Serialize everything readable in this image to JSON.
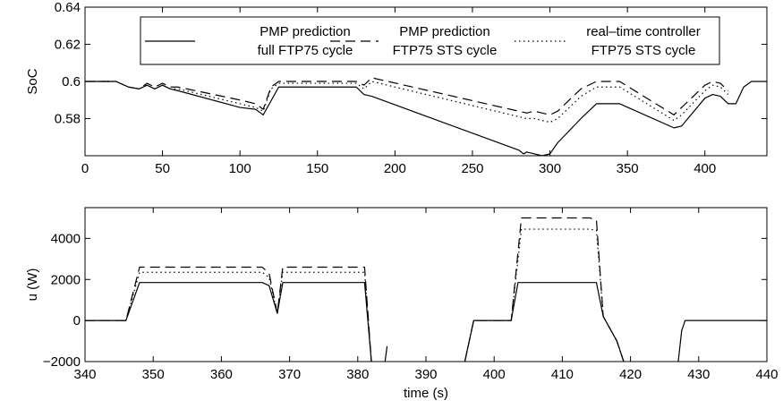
{
  "chart_data": [
    {
      "type": "line",
      "xlim": [
        0,
        440
      ],
      "ylim": [
        0.56,
        0.64
      ],
      "xticks": [
        "0",
        "50",
        "100",
        "150",
        "200",
        "250",
        "300",
        "350",
        "400"
      ],
      "yticks": [
        "0.58",
        "0.6",
        "0.62",
        "0.64"
      ],
      "ylabel": "SoC",
      "xlabel": "",
      "legend": "top",
      "series": [
        {
          "line1": "PMP prediction",
          "line2": "full FTP75 cycle",
          "style": "solid",
          "x": [
            0,
            20,
            28,
            35,
            40,
            45,
            50,
            55,
            60,
            100,
            110,
            115,
            125,
            175,
            180,
            185,
            280,
            283,
            285,
            290,
            295,
            300,
            305,
            320,
            330,
            345,
            380,
            385,
            400,
            405,
            410,
            415,
            420,
            425,
            430,
            440
          ],
          "y": [
            0.6,
            0.6,
            0.597,
            0.596,
            0.598,
            0.596,
            0.598,
            0.596,
            0.595,
            0.586,
            0.585,
            0.582,
            0.597,
            0.597,
            0.593,
            0.592,
            0.563,
            0.561,
            0.562,
            0.561,
            0.56,
            0.561,
            0.567,
            0.58,
            0.588,
            0.588,
            0.575,
            0.576,
            0.591,
            0.593,
            0.592,
            0.588,
            0.588,
            0.597,
            0.6,
            0.6
          ]
        },
        {
          "line1": "PMP prediction",
          "line2": "FTP75 STS cycle",
          "style": "dashed",
          "x": [
            0,
            20,
            28,
            35,
            40,
            45,
            50,
            55,
            60,
            100,
            110,
            115,
            120,
            125,
            175,
            180,
            185,
            285,
            290,
            300,
            305,
            320,
            330,
            345,
            380,
            385,
            400,
            405,
            410,
            415
          ],
          "y": [
            0.6,
            0.6,
            0.597,
            0.596,
            0.599,
            0.597,
            0.599,
            0.597,
            0.597,
            0.59,
            0.588,
            0.585,
            0.597,
            0.6,
            0.6,
            0.598,
            0.602,
            0.583,
            0.584,
            0.582,
            0.584,
            0.596,
            0.6,
            0.6,
            0.582,
            0.586,
            0.598,
            0.6,
            0.599,
            0.595
          ]
        },
        {
          "line1": "real–time controller",
          "line2": "FTP75 STS cycle",
          "style": "dotted",
          "x": [
            0,
            20,
            28,
            35,
            40,
            45,
            50,
            55,
            60,
            100,
            110,
            115,
            120,
            125,
            175,
            180,
            185,
            285,
            290,
            300,
            305,
            320,
            330,
            345,
            380,
            385,
            400,
            405,
            410,
            415
          ],
          "y": [
            0.6,
            0.6,
            0.597,
            0.596,
            0.598,
            0.596,
            0.598,
            0.596,
            0.596,
            0.588,
            0.586,
            0.584,
            0.596,
            0.599,
            0.599,
            0.596,
            0.6,
            0.58,
            0.58,
            0.578,
            0.58,
            0.592,
            0.597,
            0.597,
            0.579,
            0.582,
            0.595,
            0.598,
            0.597,
            0.593
          ]
        }
      ]
    },
    {
      "type": "line",
      "xlim": [
        340,
        440
      ],
      "ylim": [
        -2000,
        5500
      ],
      "xticks": [
        "340",
        "350",
        "360",
        "370",
        "380",
        "390",
        "400",
        "410",
        "420",
        "430",
        "440"
      ],
      "yticks": [
        "−2000",
        "0",
        "2000",
        "4000"
      ],
      "ylabel": "u (W)",
      "xlabel": "time (s)",
      "series": [
        {
          "style": "solid",
          "segments": [
            {
              "x": [
                340,
                346,
                348,
                366,
                367,
                368.2,
                369,
                381,
                382
              ],
              "y": [
                0,
                0,
                1850,
                1850,
                1700,
                350,
                1850,
                1850,
                -2000
              ]
            },
            {
              "x": [
                384,
                384.3
              ],
              "y": [
                -2000,
                -1250
              ]
            },
            {
              "x": [
                395.7,
                397,
                402.5,
                403.5,
                415,
                416,
                418,
                419
              ],
              "y": [
                -2000,
                0,
                0,
                1850,
                1850,
                200,
                -1000,
                -2000
              ]
            },
            {
              "x": [
                427,
                427.5,
                428,
                440
              ],
              "y": [
                -2000,
                -500,
                0,
                0
              ]
            }
          ]
        },
        {
          "style": "dashed",
          "segments": [
            {
              "x": [
                340,
                346,
                348,
                366,
                367,
                368.2,
                369,
                381,
                382
              ],
              "y": [
                0,
                0,
                2600,
                2600,
                2300,
                350,
                2600,
                2600,
                -2000
              ]
            },
            {
              "x": [
                395.7,
                397,
                402.5,
                404,
                414,
                415,
                416,
                418,
                419
              ],
              "y": [
                -2000,
                0,
                0,
                5000,
                5000,
                4900,
                200,
                -1000,
                -2000
              ]
            }
          ]
        },
        {
          "style": "dotted",
          "segments": [
            {
              "x": [
                340,
                346,
                348,
                366,
                367,
                368.2,
                369,
                381,
                382
              ],
              "y": [
                0,
                0,
                2350,
                2350,
                2100,
                350,
                2350,
                2350,
                -2000
              ]
            },
            {
              "x": [
                395.7,
                397,
                402.5,
                404,
                414,
                415,
                416,
                418,
                419
              ],
              "y": [
                -2000,
                0,
                0,
                4450,
                4450,
                4400,
                200,
                -1000,
                -2000
              ]
            }
          ]
        }
      ]
    }
  ]
}
